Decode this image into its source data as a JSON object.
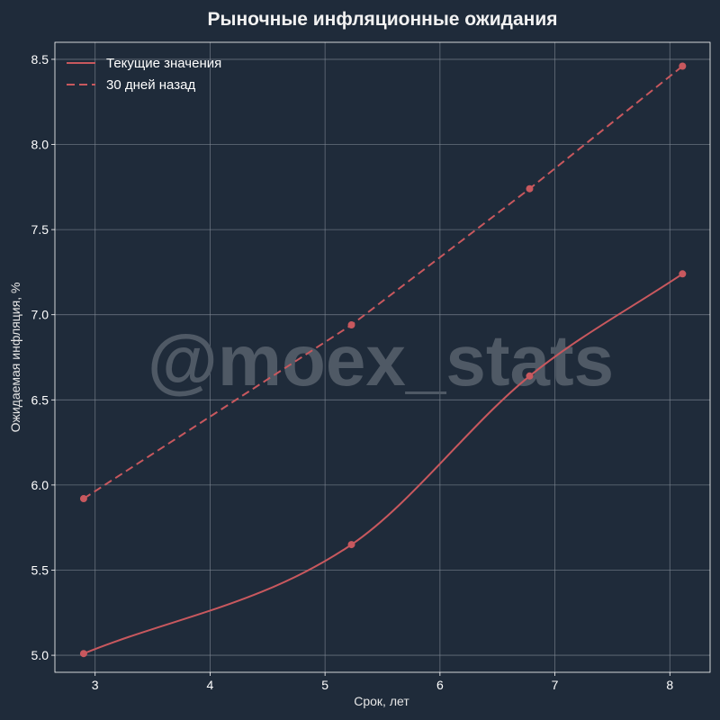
{
  "chart_data": {
    "type": "line",
    "title": "Рыночные инфляционные ожидания",
    "xlabel": "Срок, лет",
    "ylabel": "Ожидаемая инфляция, %",
    "xlim": [
      2.65,
      8.35
    ],
    "ylim": [
      4.9,
      8.6
    ],
    "xticks": [
      "3",
      "4",
      "5",
      "6",
      "7",
      "8"
    ],
    "yticks": [
      "5.0",
      "5.5",
      "6.0",
      "6.5",
      "7.0",
      "7.5",
      "8.0",
      "8.5"
    ],
    "grid": true,
    "legend_position": "top-left",
    "watermark": "@moex_stats",
    "series": [
      {
        "name": "Текущие значения",
        "style": "solid",
        "color": "#c8585e",
        "x": [
          2.9,
          5.23,
          6.78,
          8.11
        ],
        "y": [
          5.01,
          5.65,
          6.64,
          7.24
        ]
      },
      {
        "name": "30 дней назад",
        "style": "dashed",
        "color": "#c8585e",
        "x": [
          2.9,
          5.23,
          6.78,
          8.11
        ],
        "y": [
          5.92,
          6.94,
          7.74,
          8.46
        ]
      }
    ]
  }
}
